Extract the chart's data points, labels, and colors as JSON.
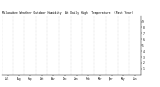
{
  "title": "Milwaukee Weather Outdoor Humidity  At Daily High  Temperature  (Past Year)",
  "background_color": "#ffffff",
  "plot_bg": "#ffffff",
  "ylim": [
    0,
    100
  ],
  "xlim": [
    0,
    365
  ],
  "grid_color": "#bbbbbb",
  "dot_color_blue": "#0000dd",
  "dot_color_red": "#dd0000",
  "dot_size": 0.15,
  "n_points": 365,
  "spike_day": 335,
  "spike_value": 100,
  "month_starts": [
    0,
    31,
    59,
    90,
    120,
    151,
    181,
    212,
    243,
    273,
    304,
    334,
    365
  ],
  "month_labels": [
    "Jul",
    "Aug",
    "Sep",
    "Oct",
    "Nov",
    "Dec",
    "Jan",
    "Feb",
    "Mar",
    "Apr",
    "May",
    "Jun"
  ],
  "ytick_pos": [
    10,
    20,
    30,
    40,
    50,
    60,
    70,
    80,
    90
  ],
  "ytick_labels": [
    "1",
    "2",
    "3",
    "4",
    "5",
    "6",
    "7",
    "8",
    "9"
  ]
}
